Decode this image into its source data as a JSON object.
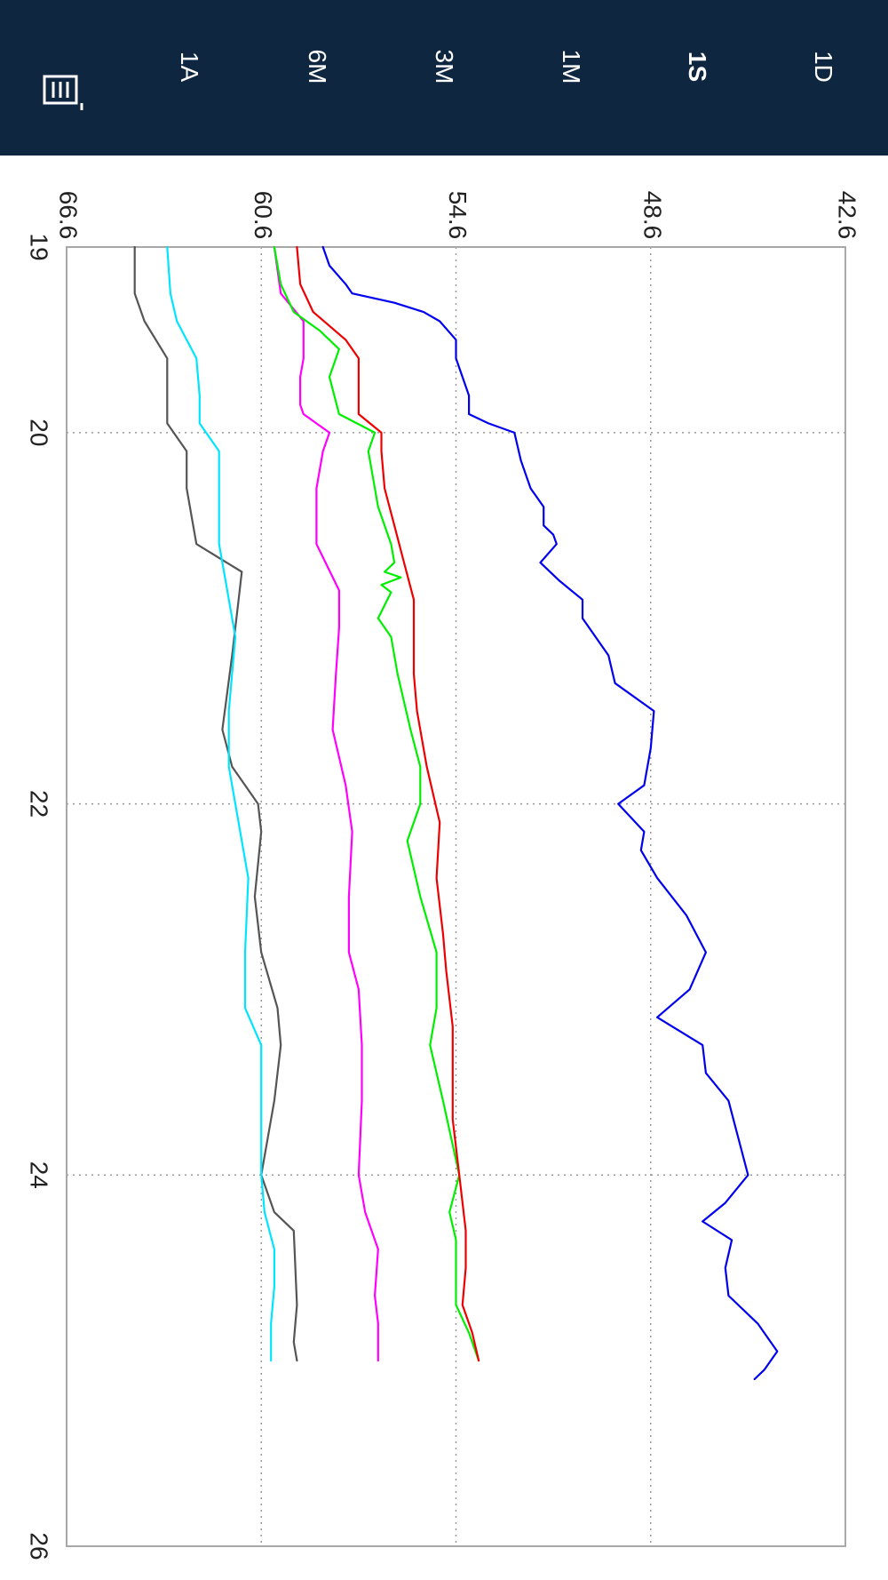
{
  "tabs": [
    {
      "label": "1D",
      "selected": false
    },
    {
      "label": "1S",
      "selected": true
    },
    {
      "label": "1M",
      "selected": false
    },
    {
      "label": "3M",
      "selected": false
    },
    {
      "label": "6M",
      "selected": false
    },
    {
      "label": "1A",
      "selected": false
    }
  ],
  "menu_icon": "calendar-menu-icon",
  "colors": {
    "header_bg": "#0f2640",
    "tab_text": "#ffffff",
    "grid": "#999999",
    "plot_border": "#a8a8a8"
  },
  "chart_data": {
    "type": "line",
    "title": "",
    "xlabel": "",
    "ylabel": "",
    "xlim": [
      19,
      26
    ],
    "ylim": [
      42.6,
      66.6
    ],
    "x_ticks": [
      "19",
      "20",
      "22",
      "24",
      "26"
    ],
    "y_ticks": [
      "42.6",
      "48.6",
      "54.6",
      "60.6",
      "66.6"
    ],
    "grid": true,
    "legend": "none",
    "series": [
      {
        "color": "#555555",
        "points": [
          [
            19.0,
            64.5
          ],
          [
            19.25,
            64.5
          ],
          [
            19.4,
            64.2
          ],
          [
            19.6,
            63.5
          ],
          [
            19.8,
            63.5
          ],
          [
            19.95,
            63.5
          ],
          [
            20.1,
            62.9
          ],
          [
            20.3,
            62.9
          ],
          [
            20.6,
            62.6
          ],
          [
            20.75,
            61.2
          ],
          [
            20.9,
            61.3
          ],
          [
            21.2,
            61.5
          ],
          [
            21.6,
            61.8
          ],
          [
            21.8,
            61.5
          ],
          [
            22.0,
            60.7
          ],
          [
            22.15,
            60.6
          ],
          [
            22.5,
            60.8
          ],
          [
            22.8,
            60.6
          ],
          [
            23.1,
            60.1
          ],
          [
            23.3,
            60.0
          ],
          [
            23.6,
            60.2
          ],
          [
            24.0,
            60.6
          ],
          [
            24.2,
            60.2
          ],
          [
            24.3,
            59.6
          ],
          [
            24.7,
            59.5
          ],
          [
            24.9,
            59.6
          ],
          [
            25.0,
            59.5
          ]
        ]
      },
      {
        "color": "#00e5ff",
        "points": [
          [
            19.0,
            63.5
          ],
          [
            19.25,
            63.4
          ],
          [
            19.4,
            63.2
          ],
          [
            19.6,
            62.6
          ],
          [
            19.8,
            62.5
          ],
          [
            19.95,
            62.5
          ],
          [
            20.1,
            61.9
          ],
          [
            20.4,
            61.9
          ],
          [
            20.6,
            61.9
          ],
          [
            20.8,
            61.7
          ],
          [
            21.1,
            61.4
          ],
          [
            21.5,
            61.6
          ],
          [
            21.8,
            61.6
          ],
          [
            22.0,
            61.4
          ],
          [
            22.4,
            61.0
          ],
          [
            22.8,
            61.1
          ],
          [
            23.1,
            61.1
          ],
          [
            23.3,
            60.6
          ],
          [
            23.6,
            60.6
          ],
          [
            24.0,
            60.6
          ],
          [
            24.2,
            60.5
          ],
          [
            24.4,
            60.2
          ],
          [
            24.6,
            60.2
          ],
          [
            24.8,
            60.3
          ],
          [
            25.0,
            60.3
          ]
        ]
      },
      {
        "color": "#ff00ff",
        "points": [
          [
            19.0,
            60.2
          ],
          [
            19.25,
            60.0
          ],
          [
            19.4,
            59.3
          ],
          [
            19.6,
            59.3
          ],
          [
            19.7,
            59.4
          ],
          [
            19.85,
            59.4
          ],
          [
            19.9,
            59.3
          ],
          [
            20.0,
            58.5
          ],
          [
            20.1,
            58.7
          ],
          [
            20.3,
            58.9
          ],
          [
            20.6,
            58.9
          ],
          [
            20.85,
            58.2
          ],
          [
            21.05,
            58.2
          ],
          [
            21.3,
            58.3
          ],
          [
            21.6,
            58.4
          ],
          [
            21.9,
            58.0
          ],
          [
            22.15,
            57.8
          ],
          [
            22.5,
            57.9
          ],
          [
            22.8,
            57.9
          ],
          [
            23.0,
            57.6
          ],
          [
            23.3,
            57.5
          ],
          [
            23.6,
            57.5
          ],
          [
            24.0,
            57.6
          ],
          [
            24.2,
            57.4
          ],
          [
            24.4,
            57.0
          ],
          [
            24.65,
            57.1
          ],
          [
            24.8,
            57.0
          ],
          [
            25.0,
            57.0
          ]
        ]
      },
      {
        "color": "#00ee00",
        "points": [
          [
            19.0,
            60.2
          ],
          [
            19.2,
            60.0
          ],
          [
            19.35,
            59.6
          ],
          [
            19.45,
            58.8
          ],
          [
            19.55,
            58.2
          ],
          [
            19.7,
            58.5
          ],
          [
            19.9,
            58.2
          ],
          [
            20.0,
            57.1
          ],
          [
            20.1,
            57.3
          ],
          [
            20.4,
            57.0
          ],
          [
            20.6,
            56.6
          ],
          [
            20.7,
            56.5
          ],
          [
            20.75,
            56.8
          ],
          [
            20.78,
            56.3
          ],
          [
            20.82,
            56.9
          ],
          [
            20.86,
            56.6
          ],
          [
            21.0,
            57.0
          ],
          [
            21.1,
            56.6
          ],
          [
            21.3,
            56.4
          ],
          [
            21.6,
            56.0
          ],
          [
            21.8,
            55.7
          ],
          [
            22.0,
            55.7
          ],
          [
            22.2,
            56.1
          ],
          [
            22.5,
            55.7
          ],
          [
            22.8,
            55.2
          ],
          [
            23.1,
            55.2
          ],
          [
            23.3,
            55.4
          ],
          [
            23.6,
            55.0
          ],
          [
            24.0,
            54.5
          ],
          [
            24.2,
            54.8
          ],
          [
            24.35,
            54.6
          ],
          [
            24.5,
            54.6
          ],
          [
            24.7,
            54.6
          ],
          [
            24.85,
            54.2
          ],
          [
            25.0,
            53.9
          ]
        ]
      },
      {
        "color": "#ee0000",
        "points": [
          [
            19.0,
            59.5
          ],
          [
            19.2,
            59.4
          ],
          [
            19.35,
            59.0
          ],
          [
            19.5,
            58.0
          ],
          [
            19.6,
            57.6
          ],
          [
            19.9,
            57.6
          ],
          [
            20.0,
            56.9
          ],
          [
            20.1,
            56.9
          ],
          [
            20.3,
            56.8
          ],
          [
            20.5,
            56.5
          ],
          [
            20.7,
            56.2
          ],
          [
            20.9,
            55.9
          ],
          [
            21.1,
            55.9
          ],
          [
            21.3,
            55.9
          ],
          [
            21.5,
            55.8
          ],
          [
            21.8,
            55.5
          ],
          [
            22.1,
            55.1
          ],
          [
            22.4,
            55.2
          ],
          [
            22.7,
            55.0
          ],
          [
            22.9,
            54.9
          ],
          [
            23.2,
            54.7
          ],
          [
            23.5,
            54.7
          ],
          [
            23.7,
            54.7
          ],
          [
            24.0,
            54.5
          ],
          [
            24.3,
            54.3
          ],
          [
            24.5,
            54.3
          ],
          [
            24.7,
            54.4
          ],
          [
            24.85,
            54.1
          ],
          [
            25.0,
            53.9
          ]
        ]
      },
      {
        "color": "#0000ee",
        "points": [
          [
            19.0,
            58.7
          ],
          [
            19.1,
            58.5
          ],
          [
            19.2,
            58.0
          ],
          [
            19.25,
            57.8
          ],
          [
            19.3,
            56.5
          ],
          [
            19.35,
            55.6
          ],
          [
            19.4,
            55.1
          ],
          [
            19.5,
            54.6
          ],
          [
            19.6,
            54.6
          ],
          [
            19.8,
            54.2
          ],
          [
            19.9,
            54.2
          ],
          [
            19.95,
            53.6
          ],
          [
            20.0,
            52.8
          ],
          [
            20.15,
            52.6
          ],
          [
            20.3,
            52.3
          ],
          [
            20.4,
            51.9
          ],
          [
            20.5,
            51.9
          ],
          [
            20.55,
            51.6
          ],
          [
            20.6,
            51.5
          ],
          [
            20.7,
            52.0
          ],
          [
            20.8,
            51.4
          ],
          [
            20.9,
            50.7
          ],
          [
            21.0,
            50.7
          ],
          [
            21.2,
            49.9
          ],
          [
            21.35,
            49.7
          ],
          [
            21.5,
            48.5
          ],
          [
            21.7,
            48.6
          ],
          [
            21.9,
            48.8
          ],
          [
            22.0,
            49.6
          ],
          [
            22.15,
            48.8
          ],
          [
            22.25,
            48.9
          ],
          [
            22.4,
            48.4
          ],
          [
            22.6,
            47.5
          ],
          [
            22.8,
            46.9
          ],
          [
            23.0,
            47.4
          ],
          [
            23.15,
            48.4
          ],
          [
            23.3,
            47.0
          ],
          [
            23.45,
            46.9
          ],
          [
            23.6,
            46.2
          ],
          [
            23.8,
            45.9
          ],
          [
            24.0,
            45.6
          ],
          [
            24.15,
            46.3
          ],
          [
            24.25,
            47.0
          ],
          [
            24.35,
            46.1
          ],
          [
            24.5,
            46.3
          ],
          [
            24.65,
            46.2
          ],
          [
            24.8,
            45.3
          ],
          [
            24.95,
            44.7
          ],
          [
            25.05,
            45.1
          ],
          [
            25.1,
            45.4
          ]
        ]
      }
    ]
  }
}
